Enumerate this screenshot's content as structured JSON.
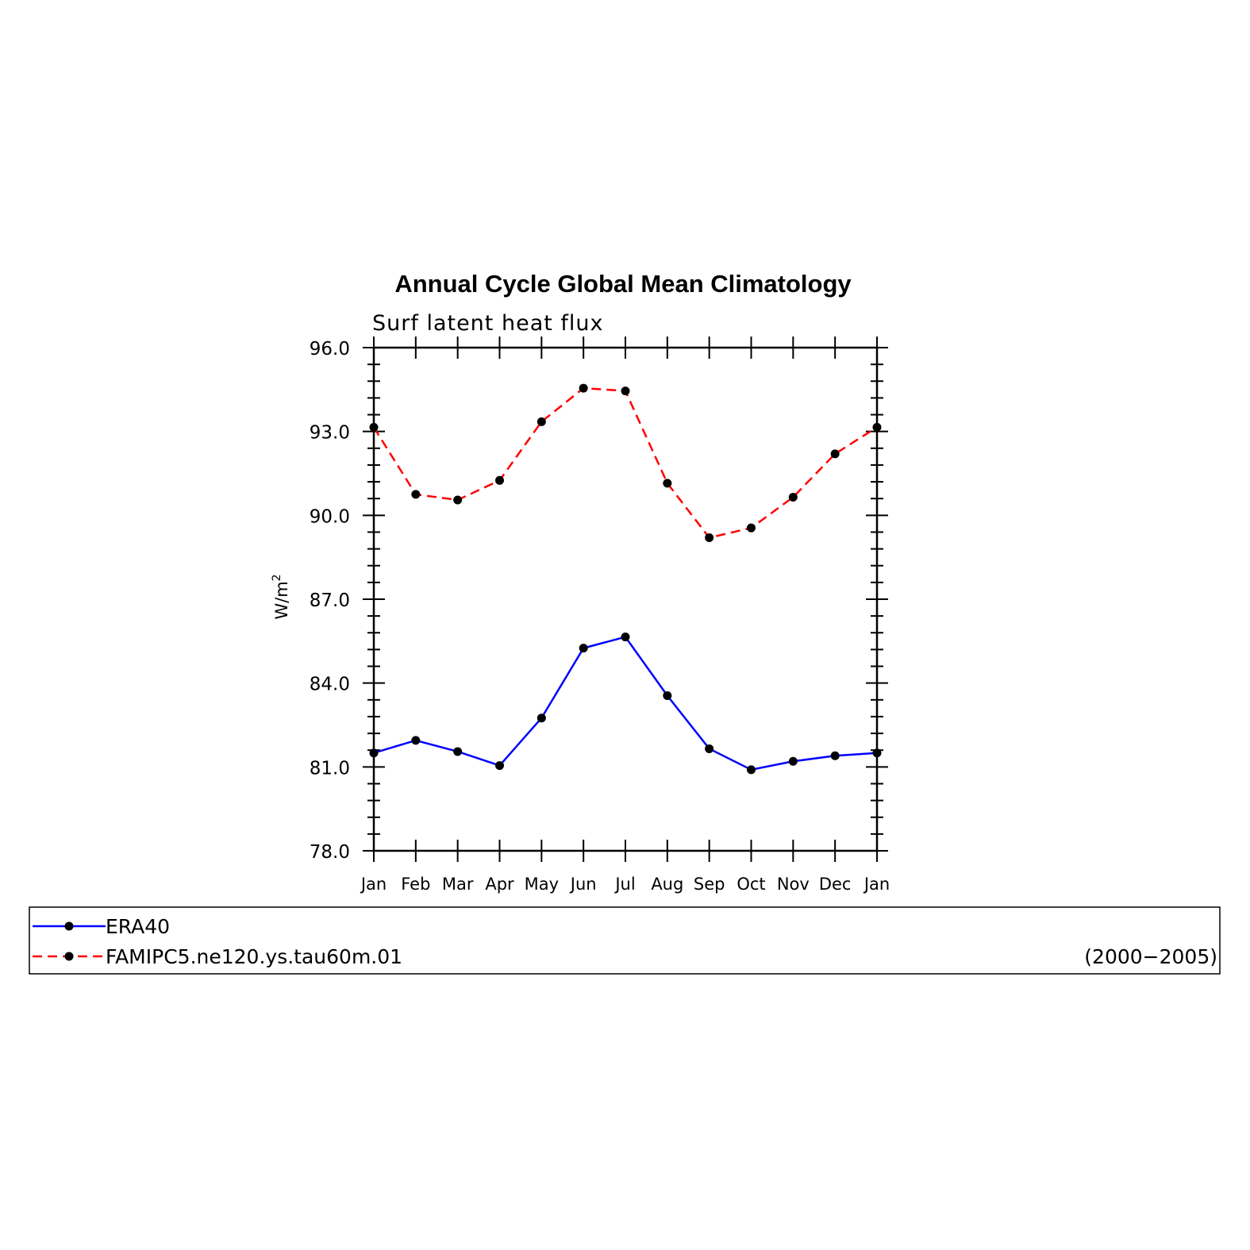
{
  "chart_data": {
    "type": "line",
    "title": "Annual Cycle Global Mean Climatology",
    "subtitle": "Surf latent heat flux",
    "ylabel": "W/m",
    "ylabel_superscript": "2",
    "ylim": [
      78.0,
      96.0
    ],
    "yticks": [
      "78.0",
      "81.0",
      "84.0",
      "87.0",
      "90.0",
      "93.0",
      "96.0"
    ],
    "categories": [
      "Jan",
      "Feb",
      "Mar",
      "Apr",
      "May",
      "Jun",
      "Jul",
      "Aug",
      "Sep",
      "Oct",
      "Nov",
      "Dec",
      "Jan"
    ],
    "series": [
      {
        "name": "ERA40",
        "color": "#0000ff",
        "style": "solid",
        "values": [
          81.5,
          81.95,
          81.55,
          81.05,
          82.75,
          85.25,
          85.65,
          83.55,
          81.65,
          80.9,
          81.2,
          81.4,
          81.5
        ]
      },
      {
        "name": "FAMIPC5.ne120.ys.tau60m.01",
        "color": "#ff0000",
        "style": "dashed",
        "values": [
          93.15,
          90.75,
          90.55,
          91.25,
          93.35,
          94.55,
          94.45,
          91.15,
          89.2,
          89.55,
          90.65,
          92.2,
          93.15
        ]
      }
    ],
    "grid": false,
    "legend_position": "bottom",
    "legend_note": "(2000−2005)"
  }
}
